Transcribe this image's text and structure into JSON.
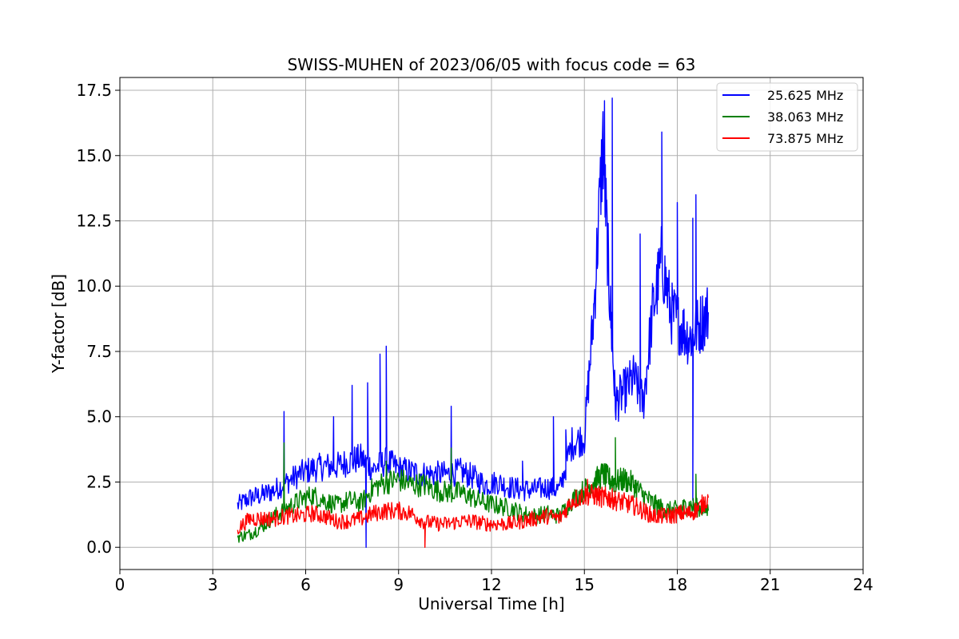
{
  "chart_data": {
    "type": "line",
    "title": "SWISS-MUHEN of 2023/06/05 with focus code = 63",
    "xlabel": "Universal Time [h]",
    "ylabel": "Y-factor [dB]",
    "xlim": [
      0,
      24
    ],
    "ylim": [
      -0.85,
      17.99
    ],
    "x_ticks": [
      0,
      3,
      6,
      9,
      12,
      15,
      18,
      21,
      24
    ],
    "x_tick_labels": [
      "0",
      "3",
      "6",
      "9",
      "12",
      "15",
      "18",
      "21",
      "24"
    ],
    "y_ticks": [
      0,
      2.5,
      5,
      7.5,
      10,
      12.5,
      15,
      17.5
    ],
    "y_tick_labels": [
      "0.0",
      "2.5",
      "5.0",
      "7.5",
      "10.0",
      "12.5",
      "15.0",
      "17.5"
    ],
    "grid": true,
    "legend_position": "top-right",
    "series": [
      {
        "name": "25.625 MHz",
        "color": "#0000ff",
        "x": [
          3.8,
          4.2,
          4.6,
          5.0,
          5.4,
          5.8,
          6.2,
          6.6,
          7.0,
          7.4,
          7.8,
          8.2,
          8.6,
          9.0,
          9.4,
          9.8,
          10.2,
          10.6,
          11.0,
          11.4,
          11.8,
          12.2,
          12.6,
          13.0,
          13.4,
          13.8,
          14.2,
          14.6,
          15.0,
          15.3,
          15.6,
          15.8,
          16.0,
          16.3,
          16.6,
          16.9,
          17.2,
          17.5,
          17.8,
          18.1,
          18.4,
          18.7,
          19.0
        ],
        "y": [
          1.6,
          1.9,
          2.0,
          2.2,
          2.5,
          2.8,
          3.0,
          3.1,
          3.1,
          3.3,
          3.4,
          3.0,
          3.3,
          3.0,
          2.9,
          2.8,
          2.8,
          2.8,
          2.9,
          2.7,
          2.4,
          2.5,
          2.3,
          2.2,
          2.2,
          2.3,
          2.2,
          4.0,
          4.2,
          9.0,
          15.5,
          10.0,
          5.5,
          6.0,
          6.5,
          5.5,
          9.0,
          11.0,
          9.0,
          8.5,
          8.0,
          8.5,
          9.0
        ],
        "spikes": [
          [
            5.3,
            5.2
          ],
          [
            6.9,
            5.0
          ],
          [
            7.5,
            6.2
          ],
          [
            8.0,
            6.3
          ],
          [
            8.4,
            7.4
          ],
          [
            8.6,
            7.7
          ],
          [
            7.95,
            0.0
          ],
          [
            10.7,
            5.4
          ],
          [
            13.0,
            3.3
          ],
          [
            14.4,
            4.5
          ],
          [
            14.0,
            5.0
          ],
          [
            15.65,
            17.1
          ],
          [
            15.9,
            17.2
          ],
          [
            16.8,
            12.0
          ],
          [
            17.5,
            15.9
          ],
          [
            18.0,
            13.2
          ],
          [
            18.5,
            12.6
          ],
          [
            18.6,
            13.5
          ],
          [
            18.5,
            1.8
          ]
        ]
      },
      {
        "name": "38.063 MHz",
        "color": "#008000",
        "x": [
          3.8,
          4.2,
          4.6,
          5.0,
          5.4,
          5.8,
          6.2,
          6.6,
          7.0,
          7.4,
          7.8,
          8.2,
          8.6,
          9.0,
          9.4,
          9.8,
          10.2,
          10.6,
          11.0,
          11.4,
          11.8,
          12.2,
          12.6,
          13.0,
          13.4,
          13.8,
          14.2,
          14.6,
          15.0,
          15.3,
          15.6,
          15.8,
          16.0,
          16.3,
          16.6,
          16.9,
          17.2,
          17.5,
          17.8,
          18.1,
          18.4,
          18.7,
          19.0
        ],
        "y": [
          0.4,
          0.5,
          0.8,
          1.2,
          1.5,
          1.8,
          2.0,
          1.8,
          1.6,
          1.8,
          1.7,
          2.3,
          2.5,
          2.6,
          2.4,
          2.4,
          2.2,
          2.1,
          2.1,
          1.9,
          1.7,
          1.6,
          1.5,
          1.3,
          1.2,
          1.3,
          1.2,
          1.8,
          2.2,
          2.5,
          2.8,
          2.6,
          2.5,
          2.6,
          2.4,
          2.0,
          1.7,
          1.5,
          1.4,
          1.5,
          1.6,
          1.5,
          1.4
        ],
        "spikes": [
          [
            5.3,
            4.0
          ],
          [
            8.6,
            3.3
          ],
          [
            10.7,
            3.8
          ],
          [
            16.0,
            4.2
          ],
          [
            18.6,
            2.8
          ]
        ]
      },
      {
        "name": "73.875 MHz",
        "color": "#ff0000",
        "x": [
          3.8,
          4.2,
          4.6,
          5.0,
          5.4,
          5.8,
          6.2,
          6.6,
          7.0,
          7.4,
          7.8,
          8.2,
          8.6,
          9.0,
          9.4,
          9.8,
          10.2,
          10.6,
          11.0,
          11.4,
          11.8,
          12.2,
          12.6,
          13.0,
          13.4,
          13.8,
          14.2,
          14.6,
          15.0,
          15.3,
          15.6,
          15.8,
          16.0,
          16.3,
          16.6,
          16.9,
          17.2,
          17.5,
          17.8,
          18.1,
          18.4,
          18.7,
          19.0
        ],
        "y": [
          0.7,
          1.1,
          1.1,
          1.1,
          1.2,
          1.2,
          1.3,
          1.2,
          1.0,
          1.0,
          1.1,
          1.3,
          1.4,
          1.4,
          1.3,
          1.0,
          0.9,
          0.9,
          1.0,
          1.0,
          0.9,
          0.9,
          0.9,
          1.0,
          1.1,
          1.2,
          1.1,
          1.8,
          2.0,
          2.0,
          1.9,
          1.9,
          1.8,
          1.7,
          1.6,
          1.4,
          1.2,
          1.2,
          1.2,
          1.3,
          1.3,
          1.5,
          1.9
        ],
        "spikes": [
          [
            9.85,
            0.0
          ],
          [
            15.1,
            2.6
          ]
        ]
      }
    ]
  }
}
